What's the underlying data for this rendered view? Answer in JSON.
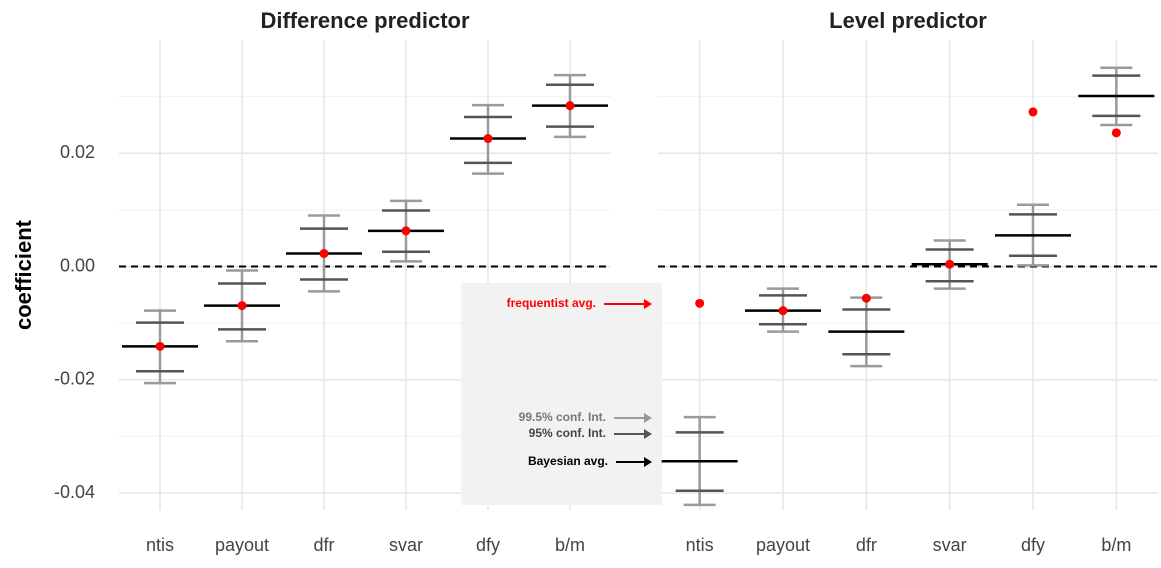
{
  "chart_data": [
    {
      "type": "errorbar",
      "title": "Difference predictor",
      "y_label": "coefficient",
      "categories": [
        "ntis",
        "payout",
        "dfr",
        "svar",
        "dfy",
        "b/m"
      ],
      "series": [
        {
          "name": "Bayesian avg.",
          "color": "#000000",
          "values": [
            -0.0141,
            -0.0069,
            0.0023,
            0.0063,
            0.0226,
            0.0284
          ]
        },
        {
          "name": "frequentist avg.",
          "color": "#ff0000",
          "values": [
            -0.0141,
            -0.0069,
            0.0023,
            0.0063,
            0.0226,
            0.0284
          ]
        }
      ],
      "intervals": [
        {
          "name": "99.5% conf. Int.",
          "color": "#9a9a9a",
          "lower": [
            -0.0206,
            -0.0132,
            -0.0044,
            0.0009,
            0.0164,
            0.0229
          ],
          "upper": [
            -0.0078,
            -0.0007,
            0.009,
            0.0116,
            0.0285,
            0.0338
          ]
        },
        {
          "name": "95% conf. Int.",
          "color": "#555555",
          "lower": [
            -0.0185,
            -0.0111,
            -0.0023,
            0.0026,
            0.0183,
            0.0247
          ],
          "upper": [
            -0.0099,
            -0.003,
            0.0067,
            0.0099,
            0.0264,
            0.0321
          ]
        }
      ],
      "ylim": [
        -0.043,
        0.04
      ],
      "yticks": [
        {
          "value": -0.04,
          "label": "-0.04"
        },
        {
          "value": -0.02,
          "label": "-0.02"
        },
        {
          "value": 0,
          "label": "0.00"
        },
        {
          "value": 0.02,
          "label": "0.02"
        }
      ],
      "yticks_minor": [
        -0.03,
        -0.01,
        0.01,
        0.03
      ],
      "hline": 0,
      "grid": true,
      "legend": true
    },
    {
      "type": "errorbar",
      "title": "Level predictor",
      "categories": [
        "ntis",
        "payout",
        "dfr",
        "svar",
        "dfy",
        "b/m"
      ],
      "series": [
        {
          "name": "Bayesian avg.",
          "color": "#000000",
          "values": [
            -0.0344,
            -0.0078,
            -0.0115,
            0.0004,
            0.0055,
            0.0301
          ]
        },
        {
          "name": "frequentist avg.",
          "color": "#ff0000",
          "values": [
            -0.0065,
            -0.0078,
            -0.0056,
            0.0004,
            0.0273,
            0.0236
          ]
        }
      ],
      "intervals": [
        {
          "name": "99.5% conf. Int.",
          "color": "#9a9a9a",
          "lower": [
            -0.0421,
            -0.0115,
            -0.0176,
            -0.0039,
            0.0002,
            0.025
          ],
          "upper": [
            -0.0266,
            -0.0039,
            -0.0055,
            0.0046,
            0.0109,
            0.0351
          ]
        },
        {
          "name": "95% conf. Int.",
          "color": "#555555",
          "lower": [
            -0.0396,
            -0.0102,
            -0.0155,
            -0.0026,
            0.0019,
            0.0266
          ],
          "upper": [
            -0.0293,
            -0.0051,
            -0.0076,
            0.003,
            0.0092,
            0.0337
          ]
        }
      ],
      "ylim": [
        -0.043,
        0.04
      ],
      "yticks": [
        -0.04,
        -0.02,
        0,
        0.02
      ],
      "yticks_minor": [
        -0.03,
        -0.01,
        0.01,
        0.03
      ],
      "hline": 0,
      "grid": true,
      "legend": false
    }
  ]
}
